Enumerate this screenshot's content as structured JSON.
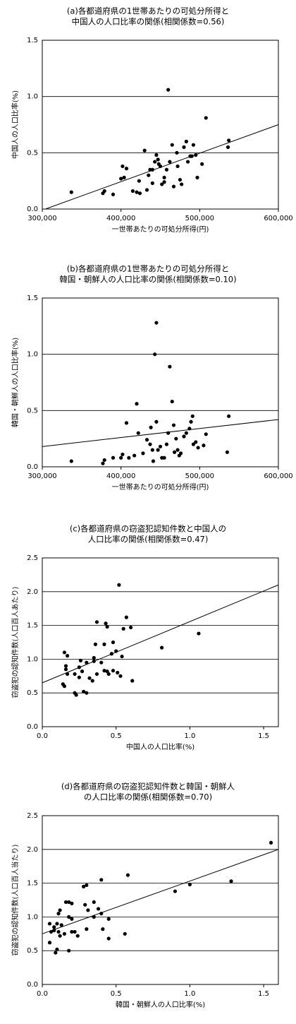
{
  "chart_data": [
    {
      "type": "scatter",
      "title": [
        "(a)各都道府県の1世帯あたりの可処分所得と",
        "中国人の人口比率の関係(相関係数=0.56)"
      ],
      "xlabel": "一世帯あたりの可処分所得(円)",
      "ylabel": "中国人の人口比率(%)",
      "color": "#000000",
      "grid": true,
      "xlim": [
        300000,
        600000
      ],
      "ylim": [
        0,
        1.5
      ],
      "xticks": [
        {
          "value": 300000,
          "label": "300,000"
        },
        {
          "value": 400000,
          "label": "400,000"
        },
        {
          "value": 500000,
          "label": "500,000"
        },
        {
          "value": 600000,
          "label": "600,000"
        }
      ],
      "yticks": [
        {
          "value": 0,
          "label": "0.0"
        },
        {
          "value": 0.5,
          "label": "0.5"
        },
        {
          "value": 1,
          "label": "1.0"
        },
        {
          "value": 1.5,
          "label": "1.5"
        }
      ],
      "x": [
        337000,
        377000,
        379000,
        390000,
        400000,
        402000,
        404000,
        407000,
        415000,
        420000,
        424000,
        423000,
        430000,
        433000,
        435000,
        437000,
        440000,
        440000,
        443000,
        445000,
        447000,
        448000,
        450000,
        452000,
        455000,
        455000,
        458000,
        460000,
        462000,
        465000,
        467000,
        471000,
        472000,
        475000,
        477000,
        480000,
        483000,
        485000,
        488000,
        490000,
        492000,
        495000,
        497000,
        503000,
        508000,
        536000,
        537000
      ],
      "y": [
        0.15,
        0.14,
        0.16,
        0.13,
        0.27,
        0.38,
        0.28,
        0.36,
        0.16,
        0.15,
        0.14,
        0.25,
        0.52,
        0.17,
        0.3,
        0.35,
        0.35,
        0.23,
        0.42,
        0.48,
        0.44,
        0.4,
        0.38,
        0.22,
        0.24,
        0.28,
        0.35,
        1.06,
        0.42,
        0.57,
        0.2,
        0.5,
        0.38,
        0.26,
        0.22,
        0.55,
        0.6,
        0.42,
        0.47,
        0.47,
        0.57,
        0.48,
        0.28,
        0.4,
        0.81,
        0.55,
        0.61
      ],
      "trendline": {
        "x": [
          304000,
          600000
        ],
        "y": [
          0,
          0.75
        ]
      }
    },
    {
      "type": "scatter",
      "title": [
        "(b)各都道府県の1世帯あたりの可処分所得と",
        "韓国・朝鮮人の人口比率の関係(相関係数=0.10)"
      ],
      "xlabel": "一世帯あたりの可処分所得(円)",
      "ylabel": "韓国・朝鮮人の人口比率(%)",
      "color": "#000000",
      "grid": true,
      "xlim": [
        300000,
        600000
      ],
      "ylim": [
        0,
        1.5
      ],
      "xticks": [
        {
          "value": 300000,
          "label": "300,000"
        },
        {
          "value": 400000,
          "label": "400,000"
        },
        {
          "value": 500000,
          "label": "500,000"
        },
        {
          "value": 600000,
          "label": "600,000"
        }
      ],
      "yticks": [
        {
          "value": 0,
          "label": "0.0"
        },
        {
          "value": 0.5,
          "label": "0.5"
        },
        {
          "value": 1,
          "label": "1.0"
        },
        {
          "value": 1.5,
          "label": "1.5"
        }
      ],
      "x": [
        337000,
        377000,
        379000,
        390000,
        400000,
        402000,
        407000,
        410000,
        417000,
        420000,
        422000,
        428000,
        433000,
        437000,
        438000,
        440000,
        441000,
        443000,
        445000,
        445000,
        447000,
        450000,
        452000,
        455000,
        458000,
        460000,
        462000,
        465000,
        467000,
        468000,
        470000,
        472000,
        474000,
        476000,
        480000,
        483000,
        487000,
        489000,
        491000,
        492000,
        495000,
        498000,
        505000,
        508000,
        535000,
        537000
      ],
      "y": [
        0.05,
        0.03,
        0.06,
        0.08,
        0.08,
        0.11,
        0.39,
        0.08,
        0.1,
        0.56,
        0.3,
        0.12,
        0.24,
        0.2,
        0.35,
        0.15,
        0.05,
        1.0,
        1.28,
        0.4,
        0.15,
        0.18,
        0.08,
        0.08,
        0.2,
        0.3,
        0.89,
        0.58,
        0.37,
        0.13,
        0.25,
        0.15,
        0.1,
        0.12,
        0.27,
        0.3,
        0.34,
        0.4,
        0.45,
        0.2,
        0.22,
        0.17,
        0.19,
        0.29,
        0.13,
        0.45
      ],
      "trendline": {
        "x": [
          300000,
          600000
        ],
        "y": [
          0.18,
          0.42
        ]
      }
    },
    {
      "type": "scatter",
      "title": [
        "(c)各都道府県の窃盗犯認知件数と中国人の",
        "人口比率の関係(相関係数=0.47)"
      ],
      "xlabel": "中国人の人口比率(%)",
      "ylabel": "窃盗犯の認知件数(人口百人あたり)",
      "color": "#000000",
      "grid": true,
      "xlim": [
        0,
        1.6
      ],
      "ylim": [
        0,
        2.5
      ],
      "xticks": [
        {
          "value": 0,
          "label": "0.0"
        },
        {
          "value": 0.5,
          "label": "0.5"
        },
        {
          "value": 1,
          "label": "1.0"
        },
        {
          "value": 1.5,
          "label": "1.5"
        }
      ],
      "yticks": [
        {
          "value": 0,
          "label": "0.0"
        },
        {
          "value": 0.5,
          "label": "0.5"
        },
        {
          "value": 1,
          "label": "1.0"
        },
        {
          "value": 1.5,
          "label": "1.5"
        },
        {
          "value": 2,
          "label": "2.0"
        },
        {
          "value": 2.5,
          "label": "2.5"
        }
      ],
      "x": [
        0.14,
        0.15,
        0.15,
        0.16,
        0.16,
        0.17,
        0.17,
        0.22,
        0.23,
        0.22,
        0.25,
        0.25,
        0.26,
        0.27,
        0.28,
        0.3,
        0.3,
        0.32,
        0.34,
        0.35,
        0.35,
        0.36,
        0.37,
        0.37,
        0.4,
        0.42,
        0.42,
        0.43,
        0.44,
        0.44,
        0.45,
        0.47,
        0.48,
        0.48,
        0.5,
        0.51,
        0.52,
        0.53,
        0.54,
        0.55,
        0.57,
        0.6,
        0.61,
        0.81,
        1.06
      ],
      "y": [
        0.63,
        1.1,
        0.6,
        0.9,
        0.85,
        1.05,
        0.78,
        0.5,
        0.47,
        0.78,
        0.73,
        0.88,
        0.98,
        0.82,
        0.52,
        0.5,
        0.95,
        0.72,
        0.68,
        0.97,
        1.02,
        1.22,
        0.78,
        1.55,
        0.95,
        1.22,
        0.83,
        1.53,
        1.48,
        0.82,
        0.78,
        1.08,
        1.25,
        0.83,
        1.12,
        0.8,
        2.1,
        0.75,
        1.04,
        1.45,
        1.62,
        1.47,
        0.68,
        1.17,
        1.38
      ],
      "trendline": {
        "x": [
          0,
          1.6
        ],
        "y": [
          0.65,
          2.1
        ]
      }
    },
    {
      "type": "scatter",
      "title": [
        "(d)各都道府県の窃盗犯認知件数と韓国・朝鮮人",
        "の人口比率の関係(相関係数=0.70)"
      ],
      "xlabel": "韓国・朝鮮人の人口比率(%)",
      "ylabel": "窃盗犯の認知件数(人口百人当たり)",
      "color": "#000000",
      "grid": true,
      "xlim": [
        0,
        1.6
      ],
      "ylim": [
        0,
        2.5
      ],
      "xticks": [
        {
          "value": 0,
          "label": "0.0"
        },
        {
          "value": 0.5,
          "label": "0.5"
        },
        {
          "value": 1,
          "label": "1.0"
        },
        {
          "value": 1.5,
          "label": "1.5"
        }
      ],
      "yticks": [
        {
          "value": 0,
          "label": "0.0"
        },
        {
          "value": 0.5,
          "label": "0.5"
        },
        {
          "value": 1,
          "label": "1.0"
        },
        {
          "value": 1.5,
          "label": "1.5"
        },
        {
          "value": 2,
          "label": "2.0"
        },
        {
          "value": 2.5,
          "label": "2.5"
        }
      ],
      "x": [
        0.05,
        0.05,
        0.06,
        0.08,
        0.08,
        0.09,
        0.1,
        0.1,
        0.11,
        0.11,
        0.12,
        0.12,
        0.13,
        0.15,
        0.16,
        0.18,
        0.18,
        0.18,
        0.2,
        0.2,
        0.2,
        0.22,
        0.24,
        0.28,
        0.3,
        0.29,
        0.3,
        0.31,
        0.35,
        0.35,
        0.38,
        0.4,
        0.4,
        0.41,
        0.45,
        0.45,
        0.56,
        0.58,
        0.9,
        1.0,
        1.28,
        1.55
      ],
      "y": [
        0.62,
        0.9,
        0.78,
        0.85,
        0.8,
        0.47,
        0.52,
        0.9,
        0.78,
        1.05,
        0.72,
        1.1,
        0.88,
        0.75,
        1.22,
        1.22,
        0.5,
        1.0,
        0.78,
        0.97,
        1.2,
        0.78,
        0.72,
        1.45,
        1.47,
        1.18,
        0.82,
        1.1,
        1.22,
        1.0,
        1.12,
        1.55,
        1.05,
        0.82,
        0.68,
        0.97,
        0.75,
        1.62,
        1.38,
        1.48,
        1.53,
        2.1
      ],
      "trendline": {
        "x": [
          0,
          1.6
        ],
        "y": [
          0.75,
          2.0
        ]
      }
    }
  ]
}
